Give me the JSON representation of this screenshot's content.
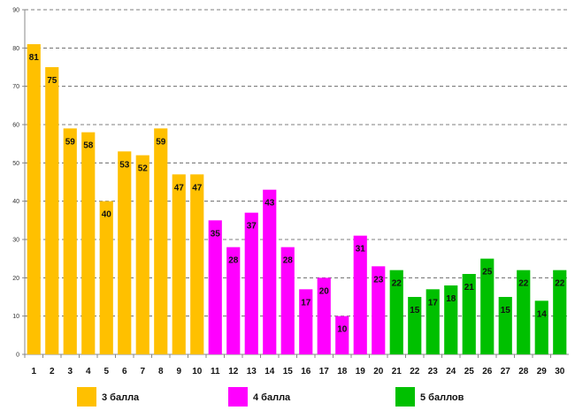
{
  "chart_data": {
    "type": "bar",
    "title": "",
    "xlabel": "",
    "ylabel": "",
    "ylim": [
      0,
      90
    ],
    "yticks": [
      0,
      10,
      20,
      30,
      40,
      50,
      60,
      70,
      80,
      90
    ],
    "grid": true,
    "legend_position": "bottom",
    "categories": [
      "1",
      "2",
      "3",
      "4",
      "5",
      "6",
      "7",
      "8",
      "9",
      "10",
      "11",
      "12",
      "13",
      "14",
      "15",
      "16",
      "17",
      "18",
      "19",
      "20",
      "21",
      "22",
      "23",
      "24",
      "25",
      "26",
      "27",
      "28",
      "29",
      "30"
    ],
    "values": [
      81,
      75,
      59,
      58,
      40,
      53,
      52,
      59,
      47,
      47,
      35,
      28,
      37,
      43,
      28,
      17,
      20,
      10,
      31,
      23,
      22,
      15,
      17,
      18,
      21,
      25,
      15,
      22,
      14,
      22
    ],
    "series": [
      {
        "name": "3 балла",
        "color": "#FFC000",
        "from": 1,
        "to": 10
      },
      {
        "name": "4 балла",
        "color": "#FF00FF",
        "from": 11,
        "to": 20
      },
      {
        "name": "5 баллов",
        "color": "#00C000",
        "from": 21,
        "to": 30
      }
    ]
  }
}
